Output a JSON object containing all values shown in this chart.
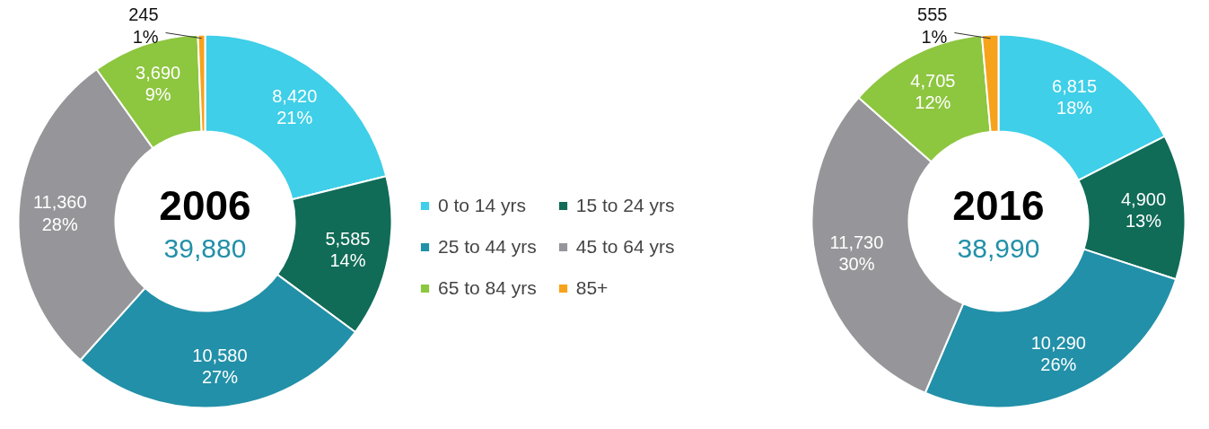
{
  "chart_data": [
    {
      "type": "donut",
      "title": "2006",
      "subtitle": "39,880",
      "legend": "right",
      "categories": [
        "0 to 14 yrs",
        "15 to 24 yrs",
        "25 to 44 yrs",
        "45 to 64 yrs",
        "65 to 84 yrs",
        "85+"
      ],
      "values": [
        8420,
        5585,
        10580,
        11360,
        3690,
        245
      ],
      "value_labels": [
        "8,420\n21%",
        "5,585\n14%",
        "10,580\n27%",
        "11,360\n28%",
        "3,690\n9%",
        "245\n1%"
      ],
      "colors": [
        "#3fcfe8",
        "#106b57",
        "#2290a8",
        "#96969a",
        "#8dc63f",
        "#f7a21b"
      ]
    },
    {
      "type": "donut",
      "title": "2016",
      "subtitle": "38,990",
      "categories": [
        null,
        null,
        null,
        null,
        null,
        null
      ],
      "values": [
        6815,
        4900,
        10290,
        11730,
        4705,
        555
      ],
      "value_labels": [
        "6,815\n18%",
        "4,900\n13%",
        "10,290\n26%",
        "11,730\n30%",
        "4,705\n12%",
        "555\n1%"
      ],
      "colors": [
        "#3fcfe8",
        "#106b57",
        "#2290a8",
        "#96969a",
        "#8dc63f",
        "#f7a21b"
      ]
    }
  ]
}
